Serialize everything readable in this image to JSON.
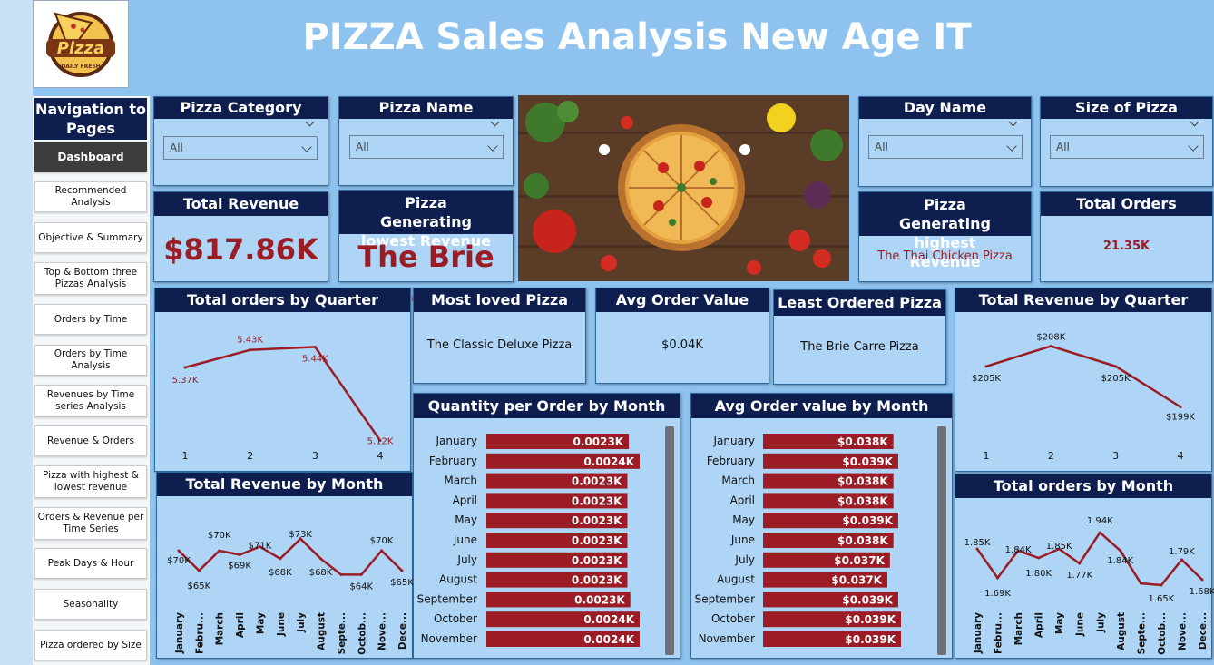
{
  "header": {
    "title": "PIZZA Sales Analysis New Age IT"
  },
  "logo": {
    "text": "Pizza",
    "sub": "DAILY FRESH"
  },
  "nav": {
    "heading": "Navigation to Pages",
    "items": [
      {
        "label": "Dashboard"
      },
      {
        "label": "Recommended Analysis"
      },
      {
        "label": "Objective & Summary"
      },
      {
        "label": "Top & Bottom three Pizzas Analysis"
      },
      {
        "label": "Orders by Time"
      },
      {
        "label": "Orders by Time Analysis"
      },
      {
        "label": "Revenues by Time series Analysis"
      },
      {
        "label": "Revenue & Orders"
      },
      {
        "label": "Pizza with highest & lowest revenue"
      },
      {
        "label": "Orders & Revenue per Time Series"
      },
      {
        "label": "Peak Days & Hour"
      },
      {
        "label": "Seasonality"
      },
      {
        "label": "Pizza ordered by Size"
      }
    ]
  },
  "filters": {
    "category": {
      "label": "Pizza Category",
      "value": "All"
    },
    "name": {
      "label": "Pizza Name",
      "value": "All"
    },
    "day": {
      "label": "Day Name",
      "value": "All"
    },
    "size": {
      "label": "Size of Pizza",
      "value": "All"
    }
  },
  "kpis": {
    "total_revenue": {
      "label": "Total Revenue",
      "value": "$817.86K"
    },
    "lowest_revenue": {
      "label": "Pizza Generating lowest Revenue",
      "value": "The Brie ..."
    },
    "highest_revenue": {
      "label": "Pizza Generating highest Revenue",
      "value": "The Thai Chicken Pizza"
    },
    "total_orders": {
      "label": "Total Orders",
      "value": "21.35K"
    },
    "most_loved": {
      "label": "Most loved Pizza",
      "value": "The Classic Deluxe Pizza"
    },
    "avg_order_value": {
      "label": "Avg Order Value",
      "value": "$0.04K"
    },
    "least_ordered": {
      "label": "Least Ordered Pizza",
      "value": "The Brie Carre Pizza"
    }
  },
  "colors": {
    "navy": "#0e1e4e",
    "accent": "#9b1c24",
    "panel": "#aed5f6",
    "background": "#8fc3ef"
  },
  "chart_data": [
    {
      "id": "orders_q",
      "type": "line",
      "title": "Total orders by Quarter",
      "categories": [
        "1",
        "2",
        "3",
        "4"
      ],
      "values": [
        5.37,
        5.43,
        5.44,
        5.12
      ],
      "labels": [
        "5.37K",
        "5.43K",
        "5.44K",
        "5.12K"
      ],
      "ylim": [
        5.1,
        5.46
      ]
    },
    {
      "id": "revenue_q",
      "type": "line",
      "title": "Total Revenue by Quarter",
      "categories": [
        "1",
        "2",
        "3",
        "4"
      ],
      "values": [
        205,
        208,
        205,
        199
      ],
      "labels": [
        "$205K",
        "$208K",
        "$205K",
        "$199K"
      ],
      "ylim": [
        198,
        209
      ]
    },
    {
      "id": "revenue_m",
      "type": "line",
      "title": "Total Revenue by Month",
      "categories": [
        "January",
        "Febru...",
        "March",
        "April",
        "May",
        "June",
        "July",
        "August",
        "Septe...",
        "Octob...",
        "Nove...",
        "Dece..."
      ],
      "values": [
        70,
        65,
        70,
        69,
        71,
        68,
        73,
        68,
        64,
        64,
        70,
        65
      ],
      "labels": [
        "$70K",
        "$65K",
        "$70K",
        "$69K",
        "$71K",
        "$68K",
        "$73K",
        "$68K",
        "",
        "$64K",
        "$70K",
        "$65K"
      ],
      "ylim": [
        60,
        75
      ]
    },
    {
      "id": "orders_m",
      "type": "line",
      "title": "Total orders by Month",
      "categories": [
        "January",
        "Febru...",
        "March",
        "April",
        "May",
        "June",
        "July",
        "August",
        "Septe...",
        "Octob...",
        "Nove...",
        "Dece..."
      ],
      "values": [
        1.85,
        1.69,
        1.84,
        1.8,
        1.85,
        1.77,
        1.94,
        1.84,
        1.66,
        1.65,
        1.79,
        1.68
      ],
      "labels": [
        "1.85K",
        "1.69K",
        "1.84K",
        "1.80K",
        "1.85K",
        "1.77K",
        "1.94K",
        "1.84K",
        "",
        "1.65K",
        "1.79K",
        "1.68K"
      ],
      "ylim": [
        1.6,
        1.98
      ]
    },
    {
      "id": "qty_m",
      "type": "bar",
      "title": "Quantity per Order by Month",
      "categories": [
        "January",
        "February",
        "March",
        "April",
        "May",
        "June",
        "July",
        "August",
        "September",
        "October",
        "November"
      ],
      "values": [
        0.0023,
        0.0024,
        0.0023,
        0.0023,
        0.0023,
        0.0023,
        0.0023,
        0.0023,
        0.0023,
        0.0024,
        0.0024
      ],
      "labels": [
        "0.0023K",
        "0.0024K",
        "0.0023K",
        "0.0023K",
        "0.0023K",
        "0.0023K",
        "0.0023K",
        "0.0023K",
        "0.0023K",
        "0.0024K",
        "0.0024K"
      ],
      "xlim": [
        0,
        0.0024
      ]
    },
    {
      "id": "aov_m",
      "type": "bar",
      "title": "Avg Order value by Month",
      "categories": [
        "January",
        "February",
        "March",
        "April",
        "May",
        "June",
        "July",
        "August",
        "September",
        "October",
        "November"
      ],
      "values": [
        0.038,
        0.039,
        0.038,
        0.038,
        0.039,
        0.038,
        0.037,
        0.037,
        0.039,
        0.039,
        0.039
      ],
      "labels": [
        "$0.038K",
        "$0.039K",
        "$0.038K",
        "$0.038K",
        "$0.039K",
        "$0.038K",
        "$0.037K",
        "$0.037K",
        "$0.039K",
        "$0.039K",
        "$0.039K"
      ],
      "xlim": [
        0,
        0.039
      ]
    }
  ]
}
